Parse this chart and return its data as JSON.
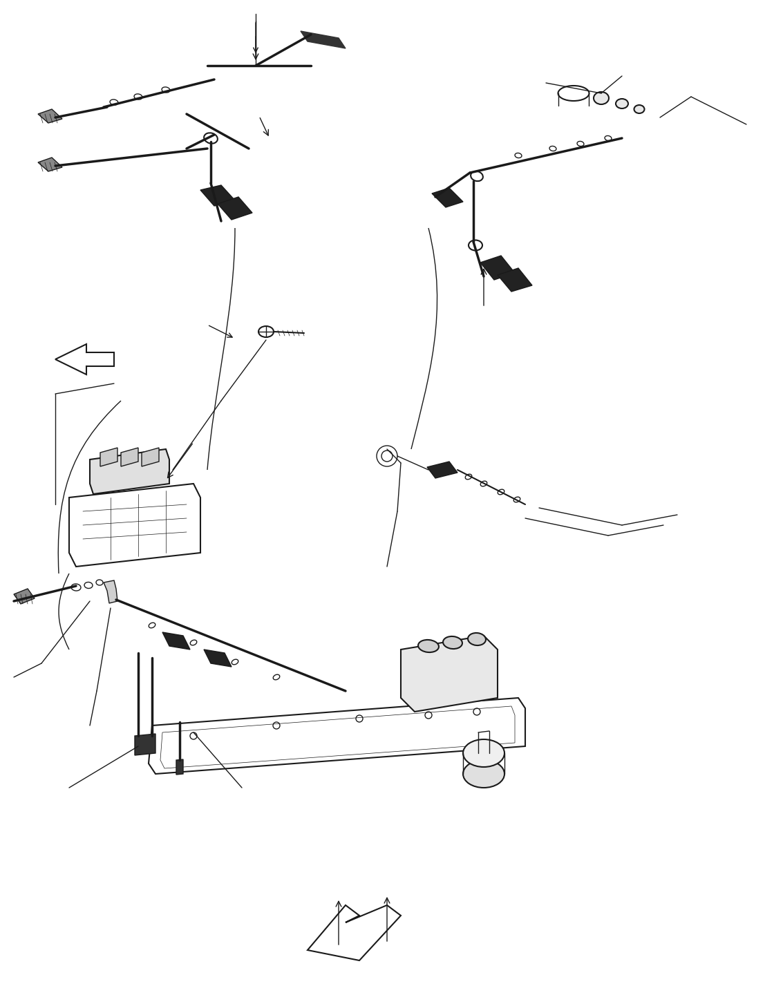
{
  "bg_color": "#ffffff",
  "line_color": "#1a1a1a",
  "fig_width": 11.2,
  "fig_height": 14.4,
  "dpi": 100
}
